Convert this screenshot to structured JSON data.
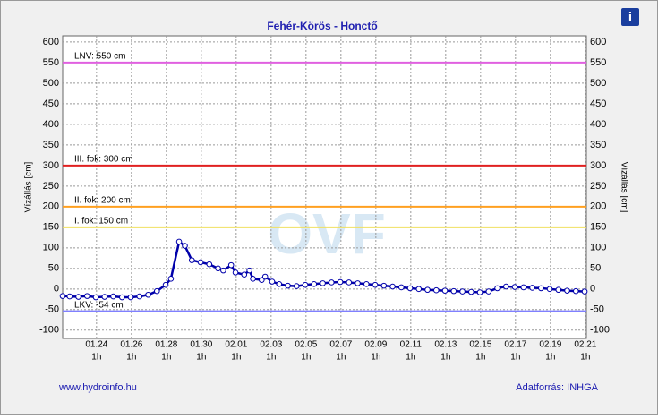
{
  "chart_data": {
    "type": "line",
    "title": "Fehér-Körös - Honctő",
    "y_label": "Vízállás [cm]",
    "y2_label": "Vízállás [cm]",
    "source_left": "www.hydroinfo.hu",
    "source_right": "Adatforrás: INHGA",
    "info_icon": "i",
    "watermark": "OVF",
    "x": [
      22.1,
      22.5,
      23,
      23.5,
      24,
      24.5,
      25,
      25.5,
      26,
      26.5,
      27,
      27.5,
      28,
      28.3,
      28.77,
      29.1,
      29.5,
      30,
      30.5,
      31,
      31.3,
      31.75,
      32,
      32.5,
      32.8,
      33,
      33.5,
      33.7,
      34.1,
      34.5,
      35,
      35.5,
      36,
      36.5,
      37,
      37.5,
      38,
      38.5,
      39,
      39.5,
      40,
      40.5,
      41,
      41.5,
      42,
      42.5,
      43,
      43.5,
      44,
      44.5,
      45,
      45.5,
      46,
      46.5,
      47,
      47.5,
      48,
      48.5,
      49,
      49.5,
      50,
      50.5,
      51,
      51.5,
      52
    ],
    "series": [
      {
        "name": "Vízállás",
        "color": "#0000aa",
        "values": [
          -17,
          -18,
          -19,
          -17,
          -20,
          -19,
          -18,
          -20,
          -20,
          -18,
          -14,
          -5,
          10,
          25,
          115,
          105,
          70,
          65,
          60,
          50,
          45,
          58,
          40,
          35,
          45,
          25,
          22,
          30,
          18,
          12,
          8,
          7,
          10,
          12,
          14,
          16,
          17,
          16,
          14,
          12,
          10,
          8,
          6,
          4,
          2,
          0,
          -2,
          -3,
          -4,
          -5,
          -6,
          -7,
          -8,
          -6,
          2,
          6,
          5,
          4,
          3,
          2,
          0,
          -2,
          -4,
          -5,
          -6
        ]
      }
    ],
    "ref_lines": [
      {
        "label": "LNV: 550 cm",
        "value": 550,
        "color": "#e060e0"
      },
      {
        "label": "III. fok: 300 cm",
        "value": 300,
        "color": "#e02020"
      },
      {
        "label": "II. fok: 200 cm",
        "value": 200,
        "color": "#ffa020"
      },
      {
        "label": "I. fok: 150 cm",
        "value": 150,
        "color": "#f0e060"
      },
      {
        "label": "LKV: -54 cm",
        "value": -54,
        "color": "#8080ff"
      }
    ],
    "xlim": [
      22.1,
      52.1
    ],
    "xticks": [
      {
        "value": 24.04,
        "label": "01.24",
        "sublabel": "1h"
      },
      {
        "value": 26.04,
        "label": "01.26",
        "sublabel": "1h"
      },
      {
        "value": 28.04,
        "label": "01.28",
        "sublabel": "1h"
      },
      {
        "value": 30.04,
        "label": "01.30",
        "sublabel": "1h"
      },
      {
        "value": 32.04,
        "label": "02.01",
        "sublabel": "1h"
      },
      {
        "value": 34.04,
        "label": "02.03",
        "sublabel": "1h"
      },
      {
        "value": 36.04,
        "label": "02.05",
        "sublabel": "1h"
      },
      {
        "value": 38.04,
        "label": "02.07",
        "sublabel": "1h"
      },
      {
        "value": 40.04,
        "label": "02.09",
        "sublabel": "1h"
      },
      {
        "value": 42.04,
        "label": "02.11",
        "sublabel": "1h"
      },
      {
        "value": 44.04,
        "label": "02.13",
        "sublabel": "1h"
      },
      {
        "value": 46.04,
        "label": "02.15",
        "sublabel": "1h"
      },
      {
        "value": 48.04,
        "label": "02.17",
        "sublabel": "1h"
      },
      {
        "value": 50.04,
        "label": "02.19",
        "sublabel": "1h"
      },
      {
        "value": 52.04,
        "label": "02.21",
        "sublabel": "1h"
      }
    ],
    "ylim": [
      -120,
      615
    ],
    "yticks": [
      -100,
      -50,
      0,
      50,
      100,
      150,
      200,
      250,
      300,
      350,
      400,
      450,
      500,
      550,
      600
    ],
    "grid": true
  }
}
